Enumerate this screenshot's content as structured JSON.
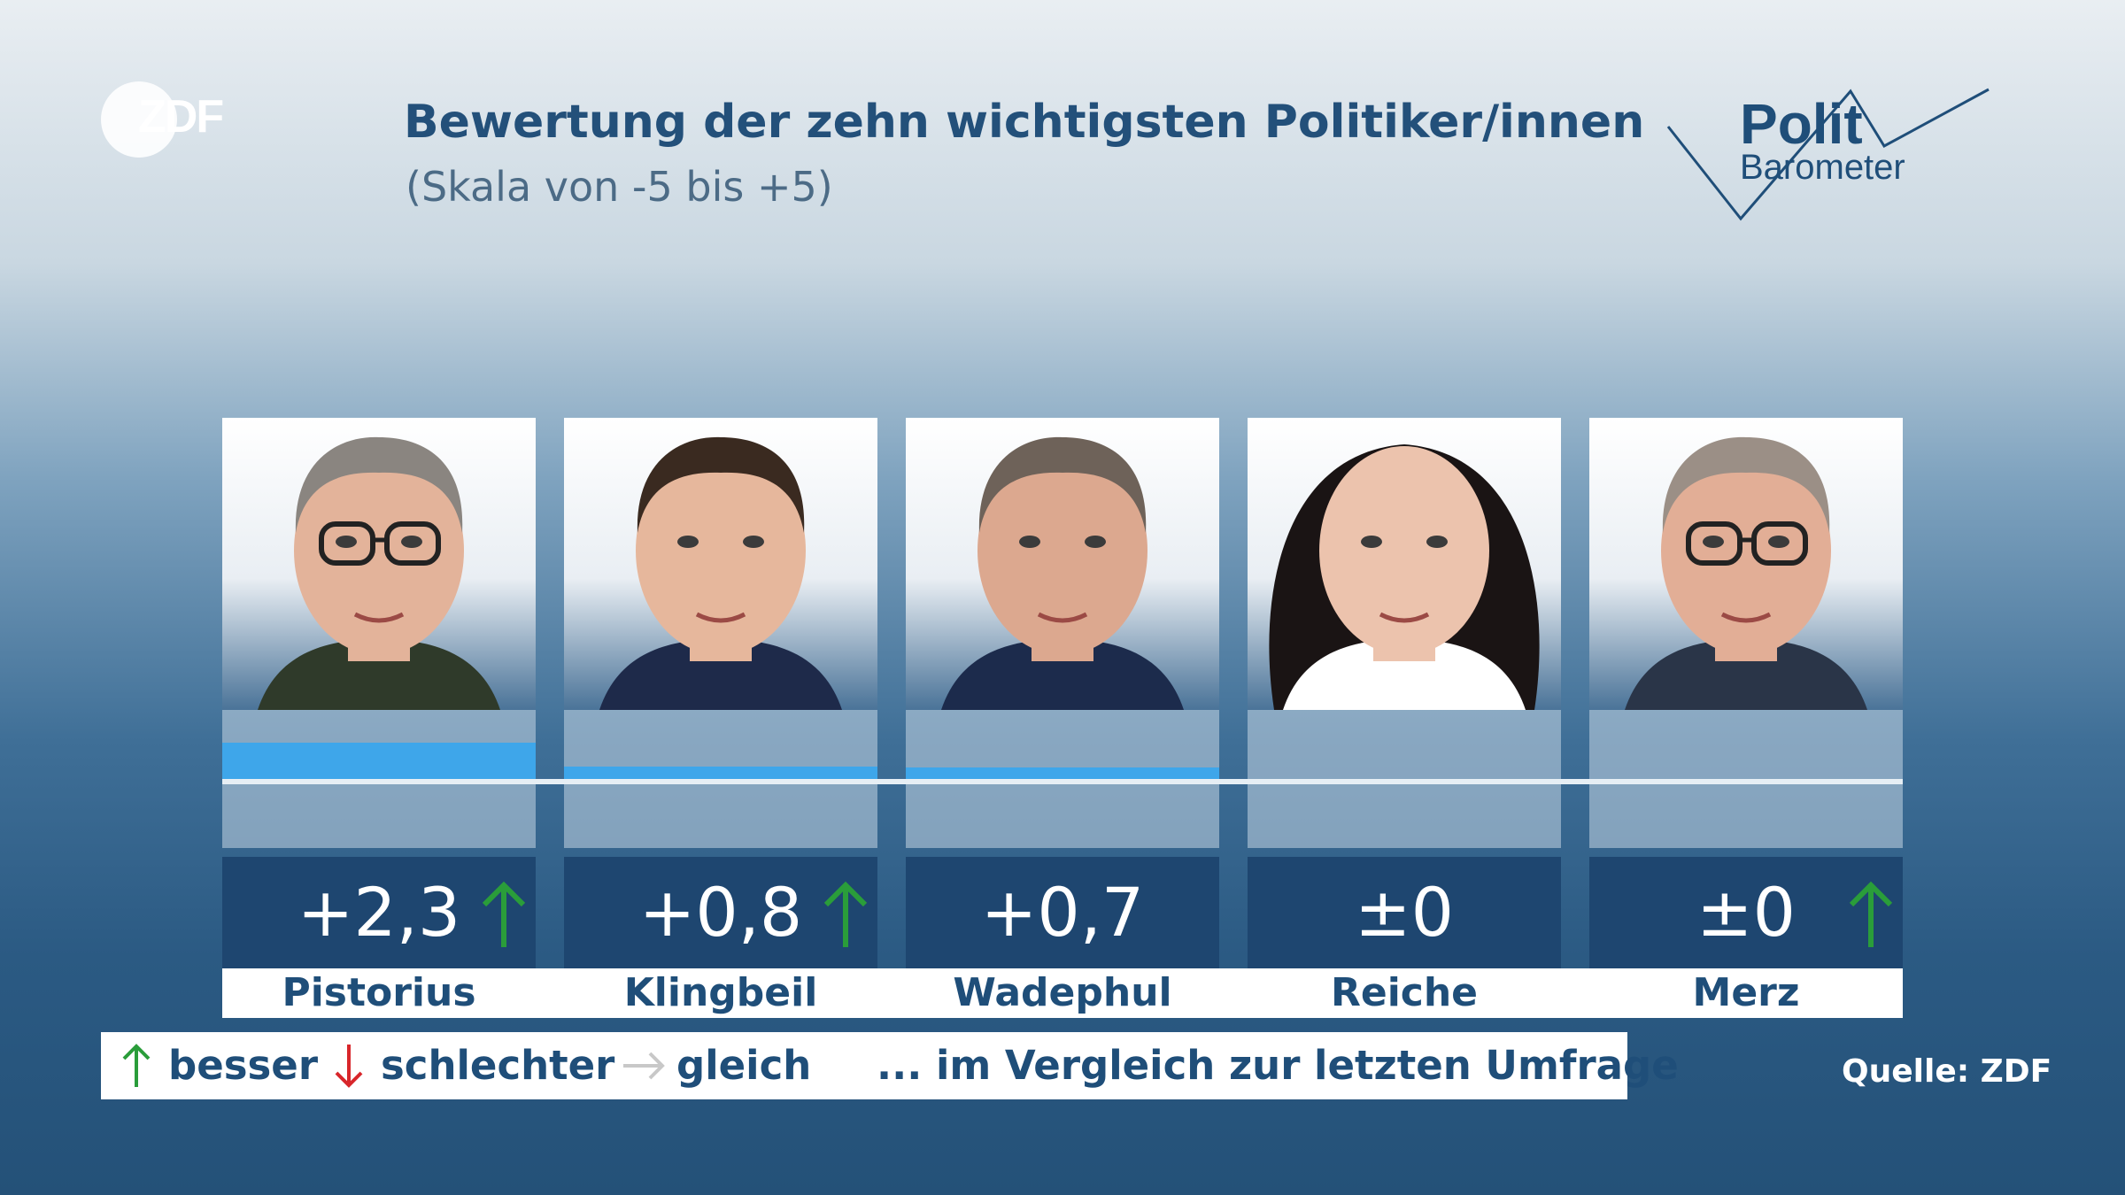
{
  "header": {
    "logo_text": "ZDF",
    "title": "Bewertung der zehn wichtigsten Politiker/innen",
    "subtitle": "(Skala von -5 bis +5)",
    "brand_line1": "Polit",
    "brand_line2": "Barometer"
  },
  "chart_data": {
    "type": "bar",
    "title": "Bewertung der zehn wichtigsten Politiker/innen",
    "subtitle": "(Skala von -5 bis +5)",
    "ylim": [
      -5,
      5
    ],
    "categories": [
      "Pistorius",
      "Klingbeil",
      "Wadephul",
      "Reiche",
      "Merz"
    ],
    "values": [
      2.3,
      0.8,
      0.7,
      0,
      0
    ],
    "value_labels": [
      "+2,3",
      "+0,8",
      "+0,7",
      "±0",
      "±0"
    ],
    "trend": [
      "up",
      "up",
      "none",
      "none",
      "up"
    ],
    "bar_color": "#3ea6ea"
  },
  "legend": {
    "better": "besser",
    "worse": "schlechter",
    "same": "gleich",
    "note": "... im Vergleich zur letzten Umfrage",
    "up_color": "#2a9d3a",
    "down_color": "#d8262b",
    "same_color": "#c8c8c8"
  },
  "source": "Quelle: ZDF"
}
